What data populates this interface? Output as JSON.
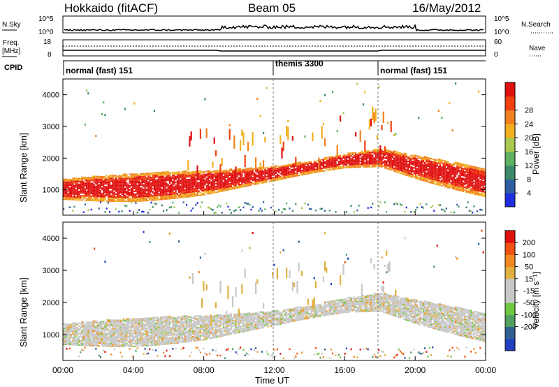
{
  "header": {
    "station": "Hokkaido (fitACF)",
    "beam": "Beam 05",
    "date": "16/May/2012"
  },
  "noise_panel": {
    "left_label": "N.Sky",
    "left_ticks": [
      "10^5",
      "10^0"
    ],
    "right_ticks": [
      "10^5",
      "10^0"
    ],
    "right_label": "N.Search"
  },
  "freq_panel": {
    "left_label_line1": "Freq.",
    "left_label_line2": "[MHz]",
    "left_ticks": [
      "18",
      "8"
    ],
    "right_ticks": [
      "60",
      "0"
    ],
    "right_label": "Nave"
  },
  "cpid_panel": {
    "label": "CPID",
    "segments": [
      {
        "name": "normal (fast) 151",
        "start_hour": 0,
        "end_hour": 12
      },
      {
        "name": "themis 3300",
        "start_hour": 12,
        "end_hour": 18
      },
      {
        "name": "normal (fast) 151",
        "start_hour": 18,
        "end_hour": 24
      }
    ]
  },
  "colors": {
    "power_scale": [
      "#1f2fe0",
      "#2f5fa0",
      "#3a8a6a",
      "#5fb060",
      "#a8c850",
      "#f0b020",
      "#f08020",
      "#f04010",
      "#e01010"
    ],
    "velocity_scale": [
      "#e01010",
      "#f05010",
      "#f08a20",
      "#e0b040",
      "#c8c8c8",
      "#c8c8c8",
      "#70c840",
      "#50a060",
      "#306090",
      "#2040c0"
    ]
  },
  "chart_data": [
    {
      "type": "heatmap",
      "ylabel": "Slant Range [km]",
      "yticks": [
        "1000",
        "2000",
        "3000",
        "4000"
      ],
      "ylim": [
        200,
        4500
      ],
      "xlim": [
        0,
        24
      ],
      "colorbar": {
        "label": "Power [dB]",
        "ticks": [
          "4",
          "8",
          "12",
          "16",
          "20",
          "24",
          "28"
        ]
      },
      "echo_band": {
        "center_km_by_hour": [
          [
            0,
            1000
          ],
          [
            4,
            1050
          ],
          [
            8,
            1200
          ],
          [
            12,
            1500
          ],
          [
            16,
            1900
          ],
          [
            18,
            2000
          ],
          [
            20,
            1700
          ],
          [
            24,
            1200
          ]
        ],
        "dominant_power_db": 28
      }
    },
    {
      "type": "heatmap",
      "ylabel": "Slant Range [km]",
      "yticks": [
        "1000",
        "2000",
        "3000",
        "4000"
      ],
      "ylim": [
        200,
        4500
      ],
      "xlim": [
        0,
        24
      ],
      "colorbar": {
        "label": "Velocity [m s⁻¹]",
        "ticks": [
          "200",
          "100",
          "50",
          "15",
          "-15",
          "-50",
          "-100",
          "-200"
        ]
      },
      "echo_band": {
        "center_km_by_hour": [
          [
            0,
            1000
          ],
          [
            4,
            1050
          ],
          [
            8,
            1200
          ],
          [
            12,
            1500
          ],
          [
            16,
            1900
          ],
          [
            18,
            2000
          ],
          [
            20,
            1700
          ],
          [
            24,
            1200
          ]
        ],
        "dominant_velocity_ms": 0
      }
    }
  ],
  "x_axis": {
    "ticks": [
      "00:00",
      "04:00",
      "08:00",
      "12:00",
      "16:00",
      "20:00",
      "00:00"
    ],
    "label": "Time UT"
  }
}
